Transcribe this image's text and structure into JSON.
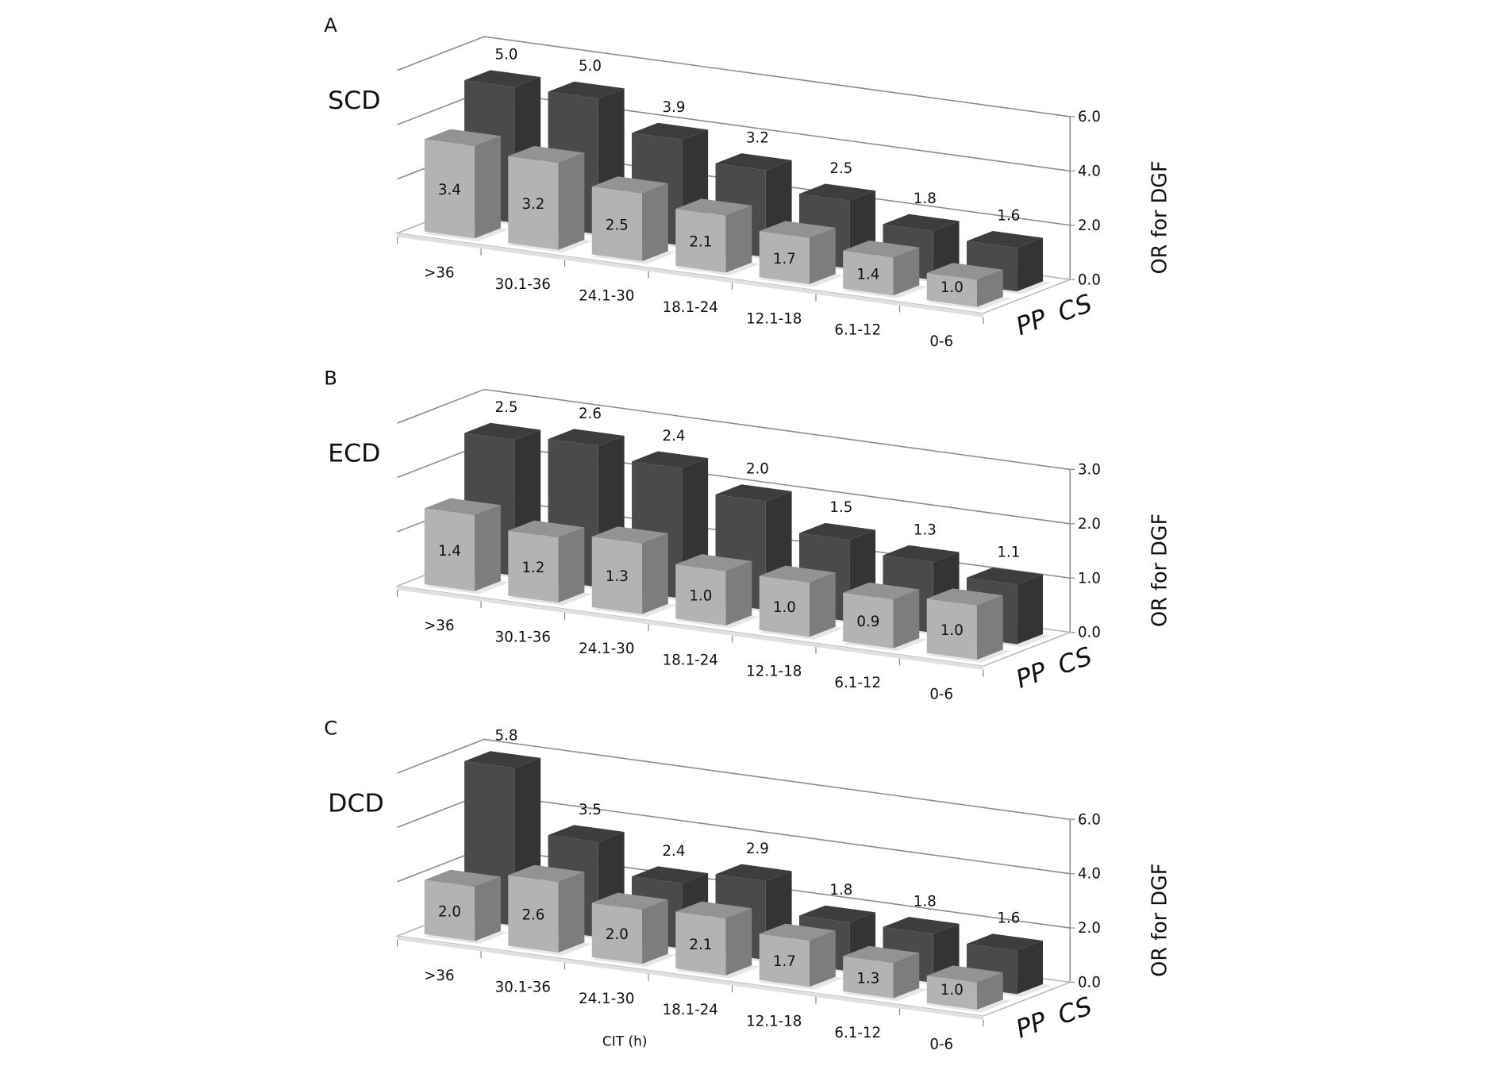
{
  "chart_data": [
    {
      "type": "bar",
      "panel": "A",
      "group_label": "SCD",
      "categories": [
        ">36",
        "30.1-36",
        "24.1-30",
        "18.1-24",
        "12.1-18",
        "6.1-12",
        "0-6"
      ],
      "series": [
        {
          "name": "PP",
          "values": [
            3.4,
            3.2,
            2.5,
            2.1,
            1.7,
            1.4,
            1.0
          ],
          "color": "#b3b3b3"
        },
        {
          "name": "CS",
          "values": [
            5.0,
            5.0,
            3.9,
            3.2,
            2.5,
            1.8,
            1.6
          ],
          "color": "#4a4a4a"
        }
      ],
      "ylabel": "OR for DGF",
      "xlabel": "",
      "ylim": [
        0,
        6
      ],
      "yticks": [
        "0.0",
        "2.0",
        "4.0",
        "6.0"
      ],
      "grid": true,
      "style": "3d-clustered-column"
    },
    {
      "type": "bar",
      "panel": "B",
      "group_label": "ECD",
      "categories": [
        ">36",
        "30.1-36",
        "24.1-30",
        "18.1-24",
        "12.1-18",
        "6.1-12",
        "0-6"
      ],
      "series": [
        {
          "name": "PP",
          "values": [
            1.4,
            1.2,
            1.3,
            1.0,
            1.0,
            0.9,
            1.0
          ],
          "color": "#b3b3b3"
        },
        {
          "name": "CS",
          "values": [
            2.5,
            2.6,
            2.4,
            2.0,
            1.5,
            1.3,
            1.1
          ],
          "color": "#4a4a4a"
        }
      ],
      "ylabel": "OR for DGF",
      "xlabel": "",
      "ylim": [
        0,
        3
      ],
      "yticks": [
        "0.0",
        "1.0",
        "2.0",
        "3.0"
      ],
      "grid": true,
      "style": "3d-clustered-column"
    },
    {
      "type": "bar",
      "panel": "C",
      "group_label": "DCD",
      "categories": [
        ">36",
        "30.1-36",
        "24.1-30",
        "18.1-24",
        "12.1-18",
        "6.1-12",
        "0-6"
      ],
      "series": [
        {
          "name": "PP",
          "values": [
            2.0,
            2.6,
            2.0,
            2.1,
            1.7,
            1.3,
            1.0
          ],
          "color": "#b3b3b3"
        },
        {
          "name": "CS",
          "values": [
            5.8,
            3.5,
            2.4,
            2.9,
            1.8,
            1.8,
            1.6
          ],
          "color": "#4a4a4a"
        }
      ],
      "ylabel": "OR for DGF",
      "xlabel": "CIT (h)",
      "ylim": [
        0,
        6
      ],
      "yticks": [
        "0.0",
        "2.0",
        "4.0",
        "6.0"
      ],
      "grid": true,
      "style": "3d-clustered-column"
    }
  ]
}
